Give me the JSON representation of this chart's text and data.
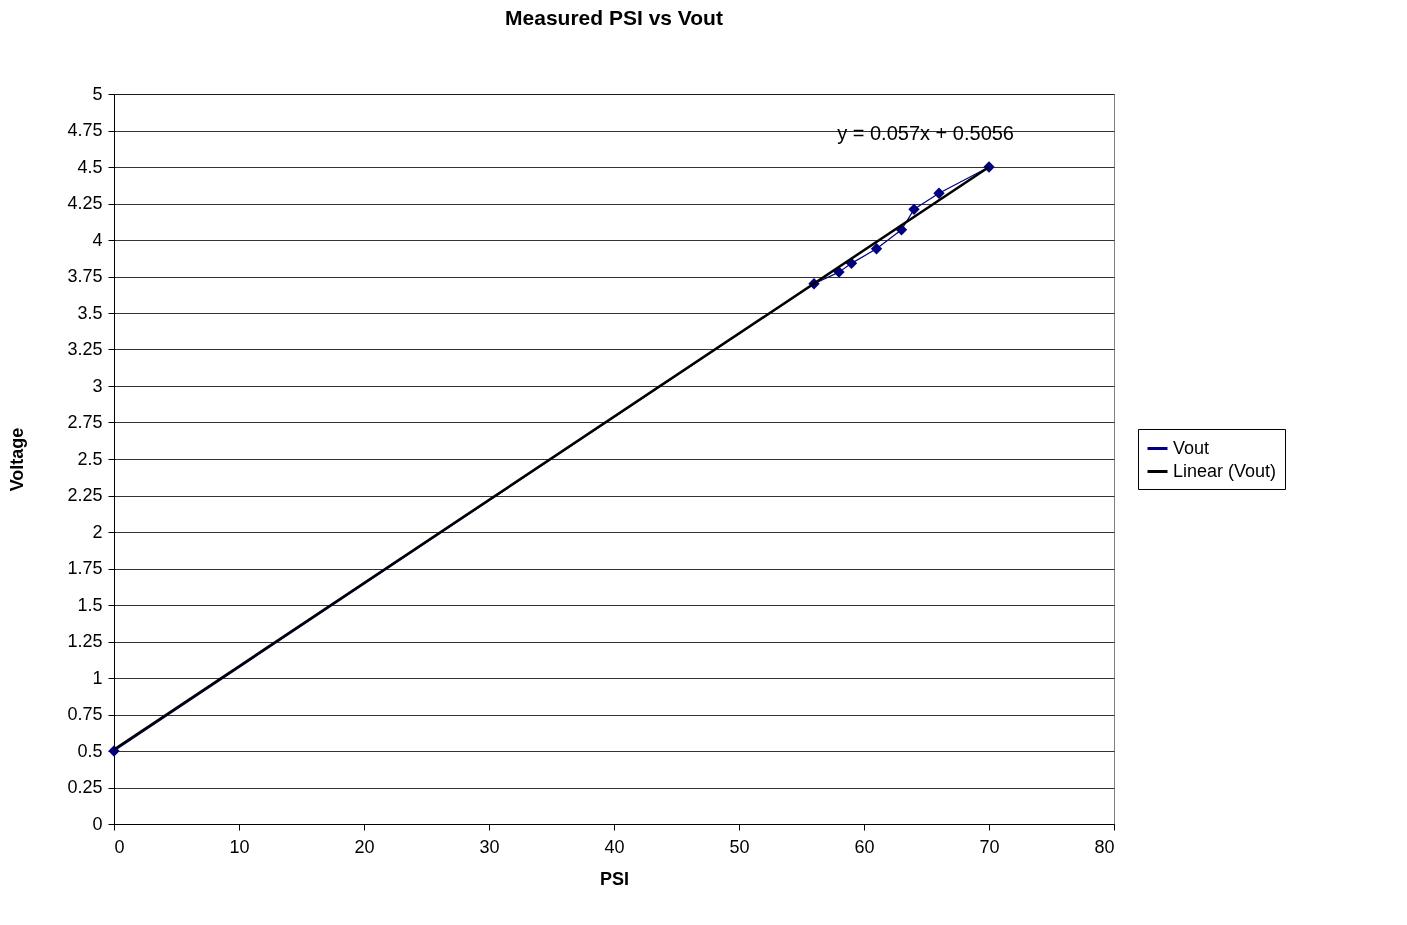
{
  "chart_data": {
    "type": "line",
    "title": "Measured PSI vs Vout",
    "xlabel": "PSI",
    "ylabel": "Voltage",
    "series": [
      {
        "name": "Vout",
        "color": "#000080",
        "marker": "diamond",
        "x": [
          0,
          56,
          58,
          59,
          61,
          63,
          64,
          66,
          70
        ],
        "values": [
          0.5,
          3.7,
          3.78,
          3.84,
          3.94,
          4.07,
          4.21,
          4.32,
          4.5
        ]
      },
      {
        "name": "Linear (Vout)",
        "type": "line",
        "color": "#000000",
        "x": [
          0,
          70
        ],
        "values": [
          0.51,
          4.5
        ]
      }
    ],
    "annotations": [
      "y = 0.057x + 0.5056"
    ],
    "xlim": [
      0,
      80
    ],
    "xticks": [
      0,
      10,
      20,
      30,
      40,
      50,
      60,
      70,
      80
    ],
    "ylim": [
      0,
      5
    ],
    "yticks": [
      0,
      0.25,
      0.5,
      0.75,
      1,
      1.25,
      1.5,
      1.75,
      2,
      2.25,
      2.5,
      2.75,
      3,
      3.25,
      3.5,
      3.75,
      4,
      4.25,
      4.5,
      4.75,
      5
    ],
    "grid": "y",
    "legend": "right"
  }
}
